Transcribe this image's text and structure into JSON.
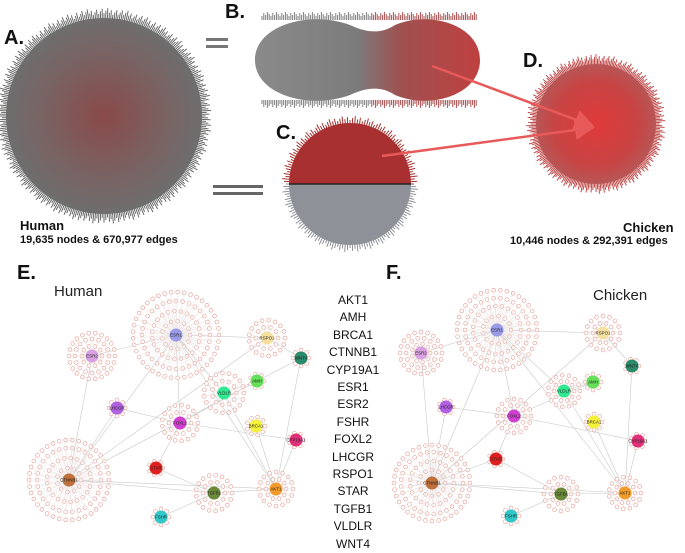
{
  "panels": {
    "A": {
      "letter": "A.",
      "title": "Human",
      "subtitle": "19,635 nodes & 670,977 edges"
    },
    "B": {
      "letter": "B."
    },
    "C": {
      "letter": "C."
    },
    "D": {
      "letter": "D.",
      "title": "Chicken",
      "subtitle": "10,446 nodes & 292,391 edges"
    },
    "E": {
      "letter": "E.",
      "title": "Human"
    },
    "F": {
      "letter": "F.",
      "title": "Chicken"
    }
  },
  "genes": [
    "AKT1",
    "AMH",
    "BRCA1",
    "CTNNB1",
    "CYP19A1",
    "ESR1",
    "ESR2",
    "FSHR",
    "FOXL2",
    "LHCGR",
    "RSPO1",
    "STAR",
    "TGFB1",
    "VLDLR",
    "WNT4"
  ],
  "gene_colors": {
    "AKT1": "#f39c2b",
    "AMH": "#66e05a",
    "BRCA1": "#f5f03a",
    "CTNNB1": "#c0703a",
    "CYP19A1": "#e0307a",
    "ESR1": "#9a9ae8",
    "ESR2": "#d8a0e0",
    "FSHR": "#30c8c8",
    "FOXL2": "#d040d0",
    "LHCGR": "#b060e0",
    "RSPO1": "#f5e0a0",
    "STAR": "#e02020",
    "TGFB1": "#6a8a3a",
    "VLDLR": "#30e890",
    "WNT4": "#2a8a6a"
  },
  "network_E_nodes": [
    "ESR1",
    "ESR2",
    "RSPO1",
    "WNT4",
    "AMH",
    "VLDLR",
    "LHCGR",
    "FOXL2",
    "BRCA1",
    "CYP19A1",
    "CTNNB1",
    "STAR",
    "TGFB1",
    "AKT1",
    "FSHR"
  ],
  "network_F_nodes": [
    "ESR1",
    "RSPO1",
    "ESR2",
    "WNT4",
    "AMH",
    "VLDLR",
    "LHCGR",
    "FOXL2",
    "BRCA1",
    "CYP19A1",
    "STAR",
    "CTNNB1",
    "TGFB1",
    "AKT1",
    "FSHR"
  ],
  "colors": {
    "network_gray": "#7a7a7a",
    "network_red": "#c83030",
    "arrow": "#e85a5a",
    "node_ring": "#e8a8a0"
  }
}
